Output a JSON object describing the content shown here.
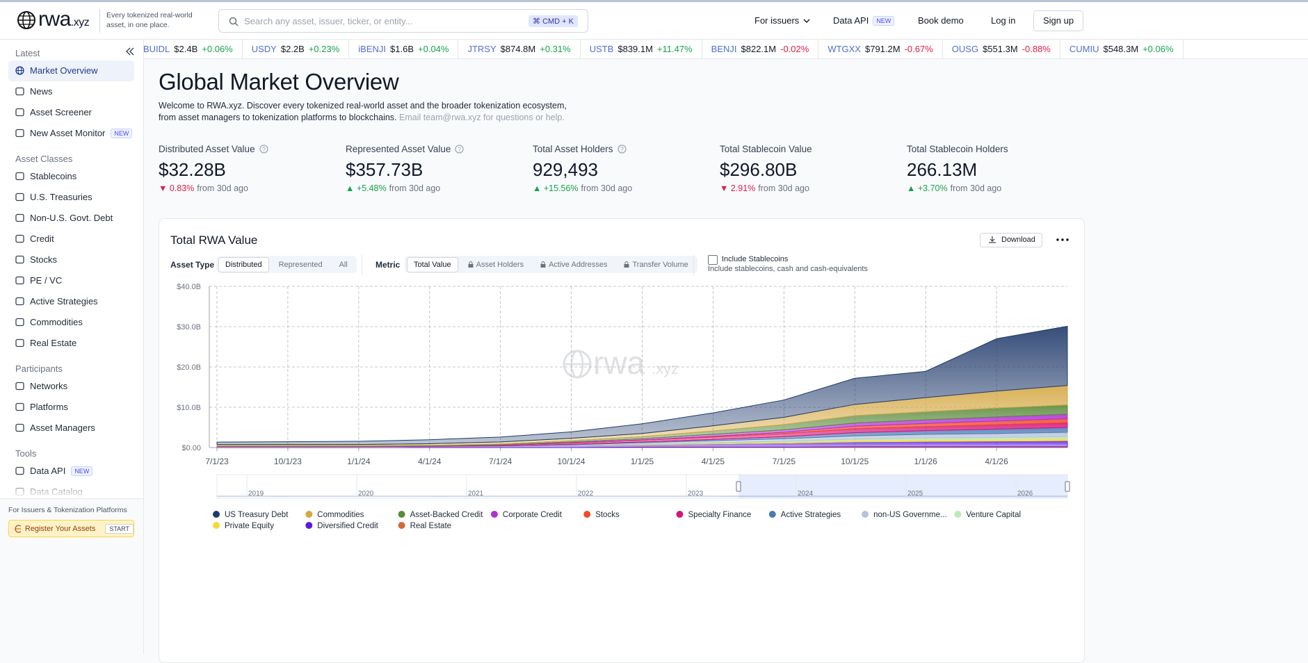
{
  "header": {
    "logo": "rwa",
    "logo_suffix": ".xyz",
    "tagline": "Every tokenized real-world asset, in one place.",
    "search_placeholder": "Search any asset, issuer, ticker, or entity...",
    "search_shortcut": "⌘ CMD + K",
    "nav": [
      {
        "label": "For issuers"
      },
      {
        "label": "Data API",
        "badge": "NEW"
      },
      {
        "label": "Book demo"
      },
      {
        "label": "Log in"
      }
    ],
    "signup": "Sign up"
  },
  "ticker": [
    {
      "symbol": "BUIDL",
      "value": "$2.4B",
      "change": "+0.06%"
    },
    {
      "symbol": "USDY",
      "value": "$2.2B",
      "change": "+0.23%"
    },
    {
      "symbol": "iBENJI",
      "value": "$1.6B",
      "change": "+0.04%"
    },
    {
      "symbol": "JTRSY",
      "value": "$874.8M",
      "change": "+0.31%"
    },
    {
      "symbol": "USTB",
      "value": "$839.1M",
      "change": "+11.47%"
    },
    {
      "symbol": "BENJI",
      "value": "$822.1M",
      "change": "-0.02%"
    },
    {
      "symbol": "WTGXX",
      "value": "$791.2M",
      "change": "-0.67%"
    },
    {
      "symbol": "OUSG",
      "value": "$551.3M",
      "change": "-0.88%"
    },
    {
      "symbol": "CUMIU",
      "value": "$548.3M",
      "change": "+0.06%"
    }
  ],
  "sidebar": {
    "sections": [
      {
        "title": "Latest",
        "items": [
          {
            "label": "Market Overview",
            "active": true
          },
          {
            "label": "News"
          },
          {
            "label": "Asset Screener"
          },
          {
            "label": "New Asset Monitor",
            "badge": "NEW"
          }
        ]
      },
      {
        "title": "Asset Classes",
        "items": [
          {
            "label": "Stablecoins"
          },
          {
            "label": "U.S. Treasuries"
          },
          {
            "label": "Non-U.S. Govt. Debt"
          },
          {
            "label": "Credit"
          },
          {
            "label": "Stocks"
          },
          {
            "label": "PE / VC"
          },
          {
            "label": "Active Strategies"
          },
          {
            "label": "Commodities"
          },
          {
            "label": "Real Estate"
          }
        ]
      },
      {
        "title": "Participants",
        "items": [
          {
            "label": "Networks"
          },
          {
            "label": "Platforms"
          },
          {
            "label": "Asset Managers"
          }
        ]
      },
      {
        "title": "Tools",
        "items": [
          {
            "label": "Data API",
            "badge": "NEW"
          },
          {
            "label": "Data Catalog"
          }
        ]
      }
    ],
    "footer": {
      "caption": "For Issuers & Tokenization Platforms",
      "button": "Register Your Assets",
      "badge": "START"
    }
  },
  "page": {
    "title": "Global Market Overview",
    "intro": "Welcome to RWA.xyz. Discover every tokenized real-world asset and the broader tokenization ecosystem, from asset managers to tokenization platforms to blockchains.",
    "intro_contact": "Email team@rwa.xyz for questions or help."
  },
  "stats": [
    {
      "label": "Distributed Asset Value",
      "value": "$32.28B",
      "change": "▼ 0.83%",
      "period": "from 30d ago",
      "info": true
    },
    {
      "label": "Represented Asset Value",
      "value": "$357.73B",
      "change": "▲ +5.48%",
      "period": "from 30d ago",
      "info": true
    },
    {
      "label": "Total Asset Holders",
      "value": "929,493",
      "change": "▲ +15.56%",
      "period": "from 30d ago",
      "info": true
    },
    {
      "label": "Total Stablecoin Value",
      "value": "$296.80B",
      "change": "▼ 2.91%",
      "period": "from 30d ago",
      "info": false
    },
    {
      "label": "Total Stablecoin Holders",
      "value": "266.13M",
      "change": "▲ +3.70%",
      "period": "from 30d ago",
      "info": false
    }
  ],
  "chart_card": {
    "download": "Download",
    "asset_type_label": "Asset Type",
    "asset_type_options": [
      "Distributed",
      "Represented",
      "All"
    ],
    "asset_type_selected": 0,
    "metric_label": "Metric",
    "metric_options": [
      "Total Value",
      "Asset Holders",
      "Active Addresses",
      "Transfer Volume"
    ],
    "metric_selected": 0,
    "metric_locked": [
      false,
      true,
      true,
      true
    ],
    "stablecoins_label": "Include Stablecoins",
    "stablecoins_checked": false,
    "stablecoins_note": "Include stablecoins, cash and cash-equivalents",
    "navigator_years": [
      "2019",
      "2020",
      "2021",
      "2022",
      "2023",
      "2024",
      "2025",
      "2026"
    ]
  },
  "chart_data": {
    "type": "stacked-area",
    "title": "Total RWA Value",
    "x": [
      "7/1/23",
      "10/1/23",
      "1/1/24",
      "4/1/24",
      "7/1/24",
      "10/1/24",
      "1/1/25",
      "4/1/25",
      "7/1/25",
      "10/1/25",
      "1/1/26",
      "4/1/26",
      null
    ],
    "ylim": [
      0,
      40
    ],
    "yticks": [
      {
        "value": 0,
        "label": "$0.00"
      },
      {
        "value": 10,
        "label": "$10.0B"
      },
      {
        "value": 20,
        "label": "$20.0B"
      },
      {
        "value": 30,
        "label": "$30.0B"
      },
      {
        "value": 40,
        "label": "$40.0B"
      }
    ],
    "grid": true,
    "series": [
      {
        "name": "US Treasury Debt",
        "color": "#1f3a6b",
        "values": [
          0.6,
          0.7,
          0.8,
          1.0,
          1.2,
          1.6,
          2.4,
          3.2,
          4.3,
          6.5,
          6.5,
          13,
          14.7
        ]
      },
      {
        "name": "Commodities",
        "color": "#d4a843",
        "values": [
          0.3,
          0.3,
          0.3,
          0.4,
          0.5,
          0.6,
          0.8,
          1.3,
          1.8,
          2.8,
          3.5,
          4.2,
          4.8
        ]
      },
      {
        "name": "Asset-Backed Credit",
        "color": "#5a8a3a",
        "values": [
          0.1,
          0.1,
          0.1,
          0.1,
          0.2,
          0.3,
          0.5,
          0.8,
          1.3,
          1.8,
          2.0,
          2.2,
          2.3
        ]
      },
      {
        "name": "Corporate Credit",
        "color": "#b02fd6",
        "values": [
          0.05,
          0.05,
          0.05,
          0.05,
          0.1,
          0.2,
          0.3,
          0.5,
          0.6,
          0.8,
          0.9,
          1.0,
          1.1
        ]
      },
      {
        "name": "Stocks",
        "color": "#f04a2a",
        "values": [
          0,
          0,
          0,
          0,
          0,
          0.1,
          0.1,
          0.2,
          0.3,
          0.6,
          0.8,
          0.9,
          1.0
        ]
      },
      {
        "name": "Specialty Finance",
        "color": "#d6147a",
        "values": [
          0.1,
          0.1,
          0.1,
          0.1,
          0.2,
          0.3,
          0.4,
          0.6,
          0.8,
          1.0,
          1.0,
          1.1,
          1.2
        ]
      },
      {
        "name": "Active Strategies",
        "color": "#4a7ab5",
        "values": [
          0,
          0,
          0,
          0,
          0,
          0.1,
          0.2,
          0.3,
          0.5,
          0.8,
          0.9,
          1.1,
          1.2
        ]
      },
      {
        "name": "non-US Governme...",
        "color": "#b5c3d8",
        "values": [
          0.1,
          0.1,
          0.1,
          0.1,
          0.1,
          0.2,
          0.3,
          0.5,
          0.6,
          0.8,
          0.9,
          1.0,
          1.1
        ]
      },
      {
        "name": "Venture Capital",
        "color": "#b8ecb8",
        "values": [
          0,
          0,
          0,
          0,
          0,
          0,
          0.1,
          0.1,
          0.2,
          0.3,
          0.4,
          0.4,
          0.4
        ]
      },
      {
        "name": "Private Equity",
        "color": "#f5d93a",
        "values": [
          0,
          0,
          0,
          0,
          0,
          0,
          0.1,
          0.2,
          0.3,
          0.4,
          0.5,
          0.5,
          0.6
        ]
      },
      {
        "name": "Diversified Credit",
        "color": "#5a1ae0",
        "values": [
          0.1,
          0.1,
          0.1,
          0.2,
          0.3,
          0.5,
          0.6,
          0.8,
          1.0,
          1.2,
          1.3,
          1.4,
          1.5
        ]
      },
      {
        "name": "Real Estate",
        "color": "#d2693a",
        "values": [
          0,
          0,
          0,
          0,
          0,
          0,
          0.1,
          0.1,
          0.1,
          0.2,
          0.2,
          0.2,
          0.2
        ]
      }
    ]
  }
}
